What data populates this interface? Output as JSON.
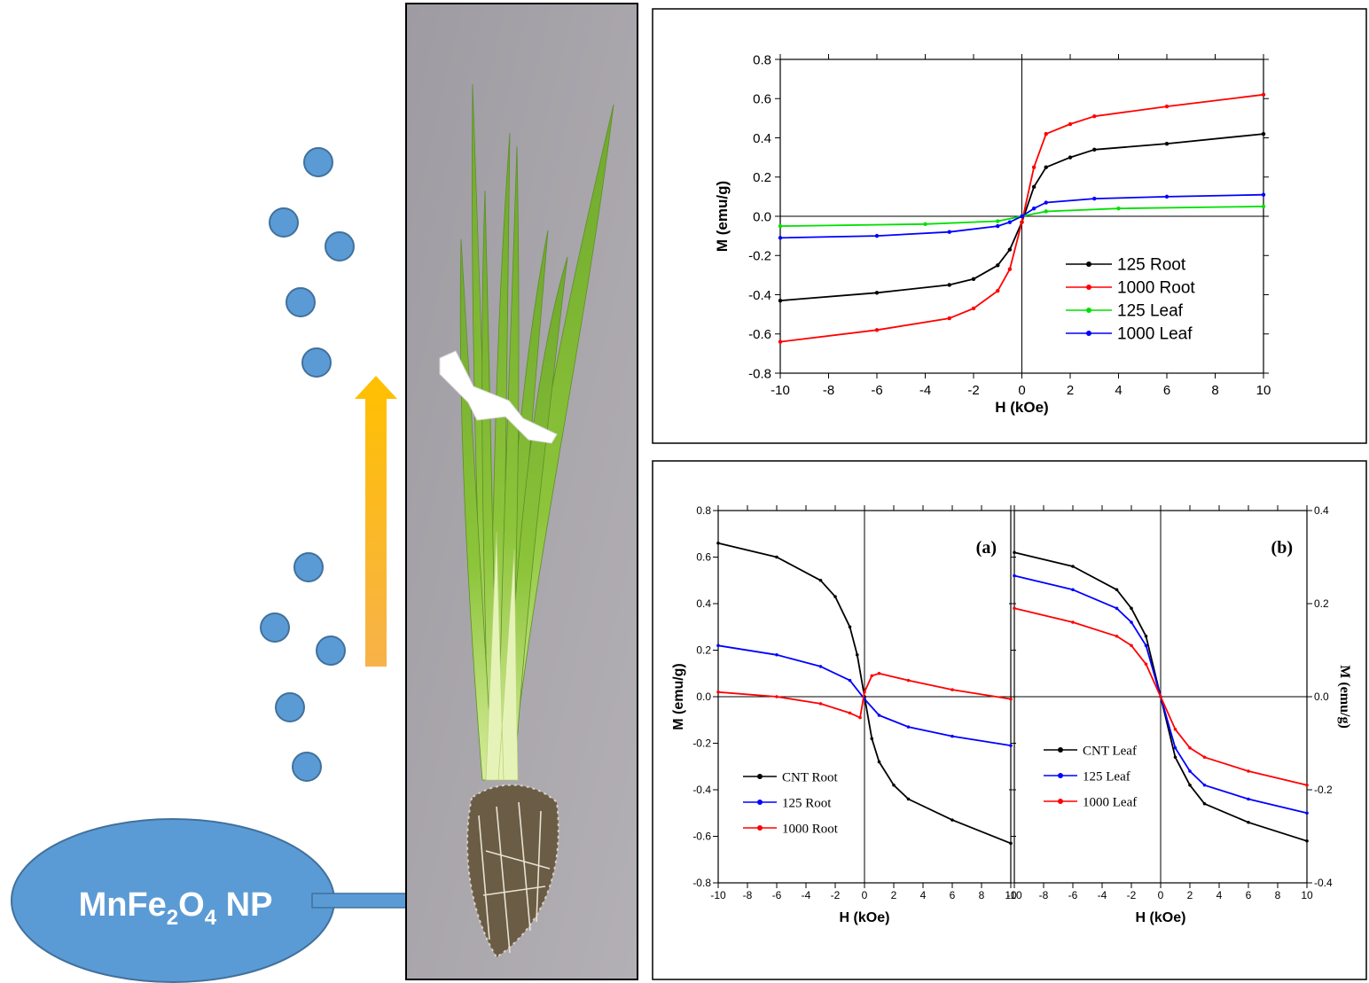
{
  "left_panel": {
    "particle_color": "#5b9bd5",
    "particle_edge": "#41719c",
    "arrow_color": "#ffc000",
    "ellipse_label_main": "MnFe",
    "ellipse_sub_1": "2",
    "ellipse_mid": "O",
    "ellipse_sub_2": "4",
    "ellipse_label_tail": " NP"
  },
  "chart_data": [
    {
      "id": "top",
      "type": "line",
      "title": "",
      "xlabel": "H  (kOe)",
      "ylabel": "M  (emu/g)",
      "xlim": [
        -10,
        10
      ],
      "ylim": [
        -0.8,
        0.8
      ],
      "xticks": [
        "-10",
        "-8",
        "-6",
        "-4",
        "-2",
        "0",
        "2",
        "4",
        "6",
        "8",
        "10"
      ],
      "yticks": [
        "-0.8",
        "-0.6",
        "-0.4",
        "-0.2",
        "0.0",
        "0.2",
        "0.4",
        "0.6",
        "0.8"
      ],
      "legend_position": "lower-right",
      "series": [
        {
          "name": "125 Root",
          "color": "#000000",
          "x": [
            -10,
            -6,
            -3,
            -2,
            -1,
            -0.5,
            0,
            0.5,
            1,
            2,
            3,
            6,
            10
          ],
          "y": [
            -0.43,
            -0.39,
            -0.35,
            -0.32,
            -0.25,
            -0.17,
            -0.03,
            0.15,
            0.25,
            0.3,
            0.34,
            0.37,
            0.42
          ]
        },
        {
          "name": "1000 Root",
          "color": "#ff0000",
          "x": [
            -10,
            -6,
            -3,
            -2,
            -1,
            -0.5,
            0,
            0.5,
            1,
            2,
            3,
            6,
            10
          ],
          "y": [
            -0.64,
            -0.58,
            -0.52,
            -0.47,
            -0.38,
            -0.27,
            -0.03,
            0.25,
            0.42,
            0.47,
            0.51,
            0.56,
            0.62
          ]
        },
        {
          "name": "125 Leaf",
          "color": "#00e000",
          "x": [
            -10,
            -4,
            -1,
            0,
            1,
            4,
            10
          ],
          "y": [
            -0.05,
            -0.04,
            -0.025,
            0,
            0.025,
            0.04,
            0.05
          ]
        },
        {
          "name": "1000 Leaf",
          "color": "#0000ff",
          "x": [
            -10,
            -6,
            -3,
            -1,
            -0.5,
            0,
            0.5,
            1,
            3,
            6,
            10
          ],
          "y": [
            -0.11,
            -0.1,
            -0.08,
            -0.05,
            -0.03,
            0,
            0.04,
            0.07,
            0.09,
            0.1,
            0.11
          ]
        }
      ]
    },
    {
      "id": "a",
      "type": "line",
      "title": "",
      "panel_label": "(a)",
      "xlabel": "H  (kOe)",
      "ylabel": "M  (emu/g)",
      "xlim": [
        -10,
        10
      ],
      "ylim": [
        -0.8,
        0.8
      ],
      "xticks": [
        "-10",
        "-8",
        "-6",
        "-4",
        "-2",
        "0",
        "2",
        "4",
        "6",
        "8",
        "10"
      ],
      "yticks": [
        "-0.8",
        "-0.6",
        "-0.4",
        "-0.2",
        "0.0",
        "0.2",
        "0.4",
        "0.6",
        "0.8"
      ],
      "legend_position": "lower-left",
      "series": [
        {
          "name": "CNT Root",
          "color": "#000000",
          "x": [
            -10,
            -6,
            -3,
            -2,
            -1,
            -0.5,
            0,
            0.5,
            1,
            2,
            3,
            6,
            10
          ],
          "y": [
            0.66,
            0.6,
            0.5,
            0.43,
            0.3,
            0.18,
            0.0,
            -0.18,
            -0.28,
            -0.38,
            -0.44,
            -0.53,
            -0.63
          ]
        },
        {
          "name": "125 Root",
          "color": "#0000ff",
          "x": [
            -10,
            -6,
            -3,
            -1,
            0,
            1,
            3,
            6,
            10
          ],
          "y": [
            0.22,
            0.18,
            0.13,
            0.07,
            -0.01,
            -0.08,
            -0.13,
            -0.17,
            -0.21
          ]
        },
        {
          "name": "1000 Root",
          "color": "#ff0000",
          "x": [
            -10,
            -6,
            -3,
            -1,
            -0.3,
            0,
            0.5,
            1,
            3,
            6,
            10
          ],
          "y": [
            0.02,
            0.0,
            -0.03,
            -0.07,
            -0.09,
            0.02,
            0.09,
            0.1,
            0.07,
            0.03,
            -0.01
          ]
        }
      ]
    },
    {
      "id": "b",
      "type": "line",
      "title": "",
      "panel_label": "(b)",
      "xlabel": "H  (kOe)",
      "ylabel": "M  (emu/g)",
      "xlim": [
        -10,
        10
      ],
      "ylim": [
        -0.4,
        0.4
      ],
      "xticks": [
        "-10",
        "-8",
        "-6",
        "-4",
        "-2",
        "0",
        "2",
        "4",
        "6",
        "8",
        "10"
      ],
      "yticks": [
        "-0.4",
        "-0.2",
        "0.0",
        "0.2",
        "0.4"
      ],
      "legend_position": "lower-left",
      "series": [
        {
          "name": "CNT Leaf",
          "color": "#000000",
          "x": [
            -10,
            -6,
            -3,
            -2,
            -1,
            0,
            1,
            2,
            3,
            6,
            10
          ],
          "y": [
            0.31,
            0.28,
            0.23,
            0.19,
            0.13,
            0.0,
            -0.13,
            -0.19,
            -0.23,
            -0.27,
            -0.31
          ]
        },
        {
          "name": "125 Leaf",
          "color": "#0000ff",
          "x": [
            -10,
            -6,
            -3,
            -2,
            -1,
            0,
            1,
            2,
            3,
            6,
            10
          ],
          "y": [
            0.26,
            0.23,
            0.19,
            0.16,
            0.11,
            0.0,
            -0.11,
            -0.16,
            -0.19,
            -0.22,
            -0.25
          ]
        },
        {
          "name": "1000 Leaf",
          "color": "#ff0000",
          "x": [
            -10,
            -6,
            -3,
            -2,
            -1,
            0,
            1,
            2,
            3,
            6,
            10
          ],
          "y": [
            0.19,
            0.16,
            0.13,
            0.11,
            0.07,
            0.0,
            -0.07,
            -0.11,
            -0.13,
            -0.16,
            -0.19
          ]
        }
      ]
    }
  ]
}
